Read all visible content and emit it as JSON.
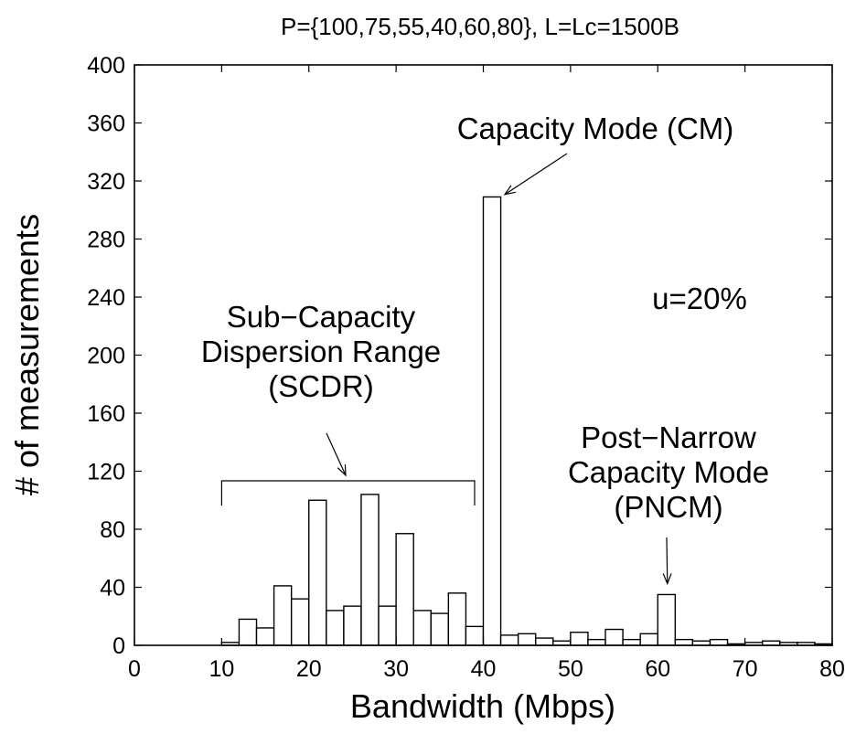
{
  "chart_data": {
    "type": "bar",
    "title": "P={100,75,55,40,60,80}, L=Lc=1500B",
    "xlabel": "Bandwidth (Mbps)",
    "ylabel": "# of measurements",
    "xlim": [
      0,
      80
    ],
    "ylim": [
      0,
      400
    ],
    "xticks": [
      0,
      10,
      20,
      30,
      40,
      50,
      60,
      70,
      80
    ],
    "yticks": [
      0,
      40,
      80,
      120,
      160,
      200,
      240,
      280,
      320,
      360,
      400
    ],
    "bin_width": 2,
    "bins": [
      {
        "x0": 10,
        "value": 2
      },
      {
        "x0": 12,
        "value": 18
      },
      {
        "x0": 14,
        "value": 12
      },
      {
        "x0": 16,
        "value": 41
      },
      {
        "x0": 18,
        "value": 32
      },
      {
        "x0": 20,
        "value": 100
      },
      {
        "x0": 22,
        "value": 24
      },
      {
        "x0": 24,
        "value": 27
      },
      {
        "x0": 26,
        "value": 104
      },
      {
        "x0": 28,
        "value": 27
      },
      {
        "x0": 30,
        "value": 77
      },
      {
        "x0": 32,
        "value": 24
      },
      {
        "x0": 34,
        "value": 22
      },
      {
        "x0": 36,
        "value": 36
      },
      {
        "x0": 38,
        "value": 13
      },
      {
        "x0": 40,
        "value": 309
      },
      {
        "x0": 42,
        "value": 7
      },
      {
        "x0": 44,
        "value": 8
      },
      {
        "x0": 46,
        "value": 5
      },
      {
        "x0": 48,
        "value": 3
      },
      {
        "x0": 50,
        "value": 9
      },
      {
        "x0": 52,
        "value": 4
      },
      {
        "x0": 54,
        "value": 11
      },
      {
        "x0": 56,
        "value": 4
      },
      {
        "x0": 58,
        "value": 8
      },
      {
        "x0": 60,
        "value": 35
      },
      {
        "x0": 62,
        "value": 4
      },
      {
        "x0": 64,
        "value": 3
      },
      {
        "x0": 66,
        "value": 4
      },
      {
        "x0": 68,
        "value": 1
      },
      {
        "x0": 70,
        "value": 2
      },
      {
        "x0": 72,
        "value": 3
      },
      {
        "x0": 74,
        "value": 2
      },
      {
        "x0": 76,
        "value": 2
      },
      {
        "x0": 78,
        "value": 1
      }
    ],
    "annotations": {
      "cm": {
        "lines": [
          "Capacity Mode (CM)"
        ],
        "arrow_to": [
          41,
          312
        ]
      },
      "utilization": {
        "lines": [
          "u=20%"
        ]
      },
      "scdr": {
        "lines": [
          "Sub−Capacity",
          "Dispersion Range",
          "(SCDR)"
        ],
        "bracket": [
          10,
          39
        ]
      },
      "pncm": {
        "lines": [
          "Post−Narrow",
          "Capacity Mode",
          "(PNCM)"
        ],
        "arrow_to": [
          61,
          40
        ]
      }
    }
  }
}
